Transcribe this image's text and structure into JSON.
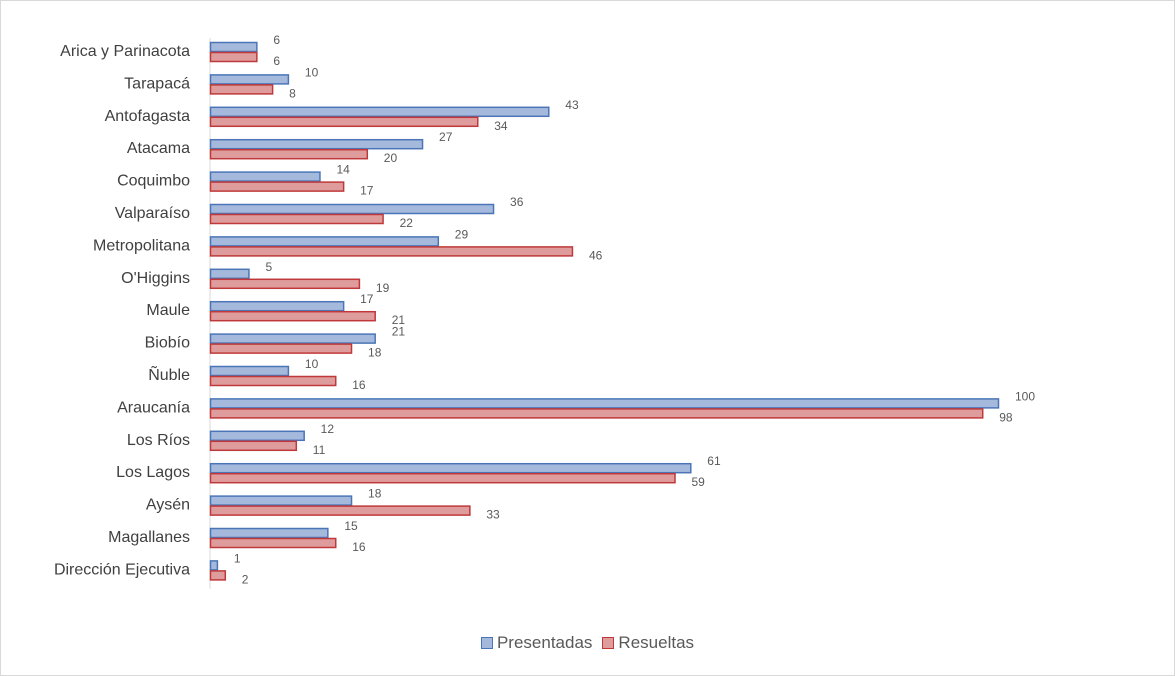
{
  "chart_data": {
    "type": "bar",
    "orientation": "horizontal",
    "categories": [
      "Arica y Parinacota",
      "Tarapacá",
      "Antofagasta",
      "Atacama",
      "Coquimbo",
      "Valparaíso",
      "Metropolitana",
      "O'Higgins",
      "Maule",
      "Biobío",
      "Ñuble",
      "Araucanía",
      "Los Ríos",
      "Los Lagos",
      "Aysén",
      "Magallanes",
      "Dirección Ejecutiva"
    ],
    "series": [
      {
        "name": "Presentadas",
        "values": [
          6,
          10,
          43,
          27,
          14,
          36,
          29,
          5,
          17,
          21,
          10,
          100,
          12,
          61,
          18,
          15,
          1
        ],
        "fill": "#a5b9dc",
        "stroke": "#4a76b8"
      },
      {
        "name": "Resueltas",
        "values": [
          6,
          8,
          34,
          20,
          17,
          22,
          46,
          19,
          21,
          18,
          16,
          98,
          11,
          59,
          33,
          16,
          2
        ],
        "fill": "#df9c9c",
        "stroke": "#c0393a"
      }
    ],
    "xlim": [
      0,
      100
    ],
    "grid": false,
    "data_labels": true,
    "legend_position": "bottom"
  }
}
